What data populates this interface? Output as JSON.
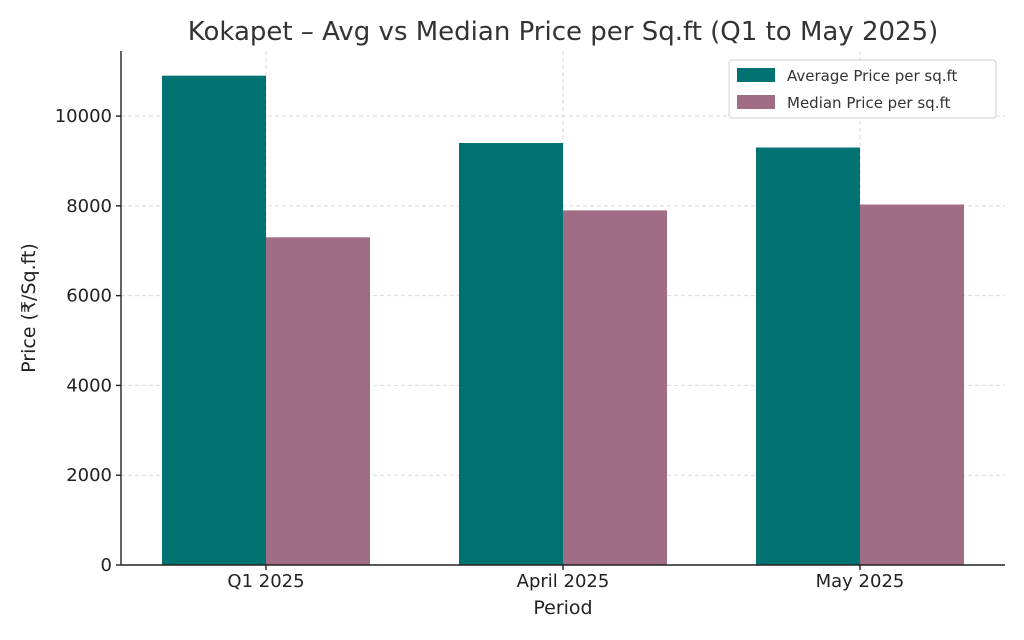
{
  "chart_data": {
    "type": "bar",
    "title": "Kokapet – Avg vs Median Price per Sq.ft (Q1 to May 2025)",
    "xlabel": "Period",
    "ylabel": "Price (₹/Sq.ft)",
    "categories": [
      "Q1 2025",
      "April 2025",
      "May 2025"
    ],
    "series": [
      {
        "name": "Average Price per sq.ft",
        "color": "#007272",
        "values": [
          10900,
          9400,
          9300
        ]
      },
      {
        "name": "Median Price per sq.ft",
        "color": "#a06d84",
        "values": [
          7300,
          7900,
          8030
        ]
      }
    ],
    "ylim": [
      0,
      11450
    ],
    "yticks": [
      "0",
      "2000",
      "4000",
      "6000",
      "8000",
      "10000"
    ],
    "grid": true,
    "legend_position": "top-right"
  }
}
